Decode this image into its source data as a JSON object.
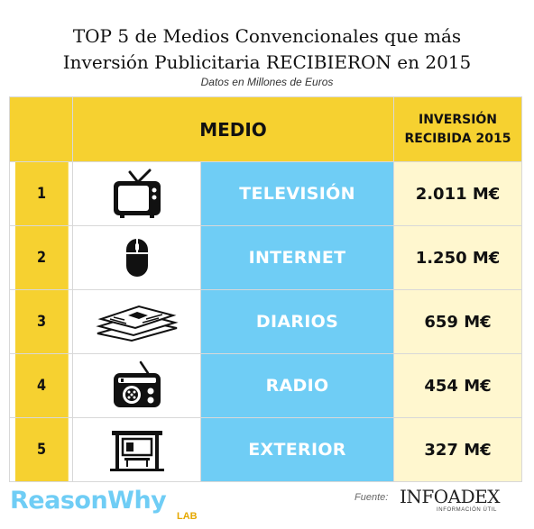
{
  "title_line1": "TOP 5 de Medios Convencionales que más",
  "title_line2": "Inversión Publicitaria RECIBIERON en 2015",
  "subtitle": "Datos en Millones de Euros",
  "headers": {
    "medio": "MEDIO",
    "inversion_line1": "INVERSIÓN",
    "inversion_line2": "RECIBIDA 2015"
  },
  "rows": [
    {
      "rank": "1",
      "medio": "TELEVISIÓN",
      "value": "2.011 M€",
      "icon": "television-icon"
    },
    {
      "rank": "2",
      "medio": "INTERNET",
      "value": "1.250 M€",
      "icon": "computer-mouse-icon"
    },
    {
      "rank": "3",
      "medio": "DIARIOS",
      "value": "659 M€",
      "icon": "newspaper-icon"
    },
    {
      "rank": "4",
      "medio": "RADIO",
      "value": "454 M€",
      "icon": "radio-icon"
    },
    {
      "rank": "5",
      "medio": "EXTERIOR",
      "value": "327 M€",
      "icon": "bus-shelter-icon"
    }
  ],
  "chart_data": {
    "type": "table",
    "title": "TOP 5 de Medios Convencionales que más Inversión Publicitaria RECIBIERON en 2015",
    "subtitle": "Datos en Millones de Euros",
    "columns": [
      "MEDIO",
      "INVERSIÓN RECIBIDA 2015"
    ],
    "categories": [
      "TELEVISIÓN",
      "INTERNET",
      "DIARIOS",
      "RADIO",
      "EXTERIOR"
    ],
    "values": [
      2011,
      1250,
      659,
      454,
      327
    ]
  },
  "footer": {
    "brand": "ReasonWhy",
    "brand_sub": "LAB",
    "source_label": "Fuente:",
    "source_name": "INFOADEX",
    "source_sub": "INFORMACIÓN ÚTIL"
  },
  "colors": {
    "yellow": "#f6d130",
    "blue": "#6fcdf5",
    "cream": "#fff7cf"
  }
}
